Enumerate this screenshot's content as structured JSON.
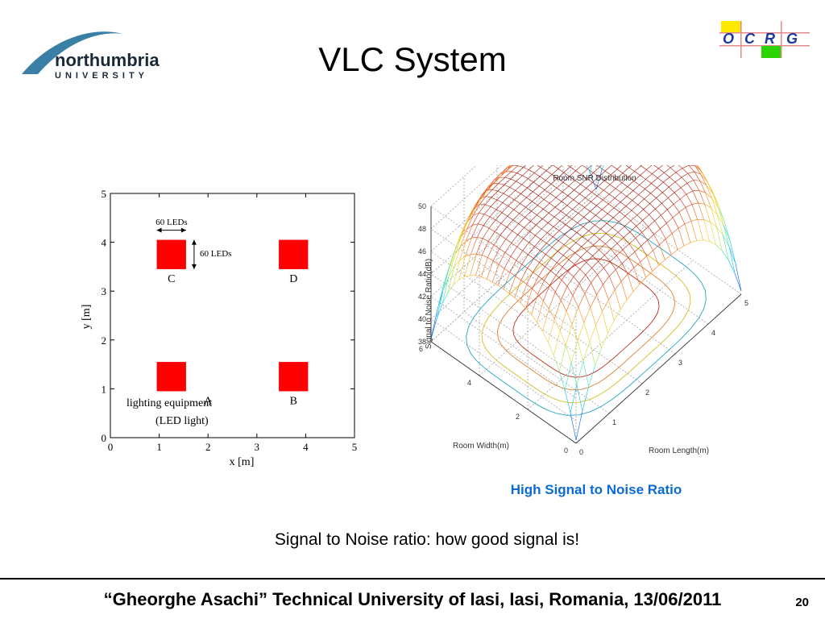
{
  "slide": {
    "title": "VLC System",
    "logo_left": {
      "line1": "northumbria",
      "line2": "UNIVERSITY"
    },
    "logo_right": {
      "letters": [
        "O",
        "C",
        "R",
        "G"
      ]
    },
    "caption": "High Signal to Noise Ratio",
    "body": "Signal to Noise ratio: how good signal is!",
    "footer": "“Gheorghe Asachi” Technical University of Iasi, Iasi, Romania, 13/06/2011",
    "page_number": "20"
  },
  "chart_data": [
    {
      "type": "scatter",
      "title": "",
      "xlabel": "x [m]",
      "ylabel": "y [m]",
      "xlim": [
        0,
        5
      ],
      "ylim": [
        0,
        5
      ],
      "xticks": [
        "0",
        "1",
        "2",
        "3",
        "4",
        "5"
      ],
      "yticks": [
        "0",
        "1",
        "2",
        "3",
        "4",
        "5"
      ],
      "series": [
        {
          "name": "C",
          "x": 1.25,
          "y": 3.75
        },
        {
          "name": "D",
          "x": 3.75,
          "y": 3.75
        },
        {
          "name": "A",
          "x": 1.25,
          "y": 1.25
        },
        {
          "name": "B",
          "x": 3.75,
          "y": 1.25
        }
      ],
      "annotations": [
        "60 LEDs",
        "60 LEDs",
        "lighting equipment",
        "(LED light)"
      ],
      "marker_color": "#ff0000"
    },
    {
      "type": "surface",
      "title": "Room SNR Distribution",
      "xlabel": "Room Length(m)",
      "ylabel": "Room Width(m)",
      "zlabel": "Signal to Noise Ratio(dB)",
      "xlim": [
        0,
        5
      ],
      "ylim": [
        0,
        6
      ],
      "zlim": [
        38,
        50
      ],
      "xticks": [
        "0",
        "1",
        "2",
        "3",
        "4",
        "5"
      ],
      "yticks": [
        "0",
        "2",
        "4",
        "6"
      ],
      "zticks": [
        "38",
        "40",
        "42",
        "44",
        "46",
        "48",
        "50"
      ],
      "peak_db": 49.5,
      "corner_db": 38
    }
  ]
}
